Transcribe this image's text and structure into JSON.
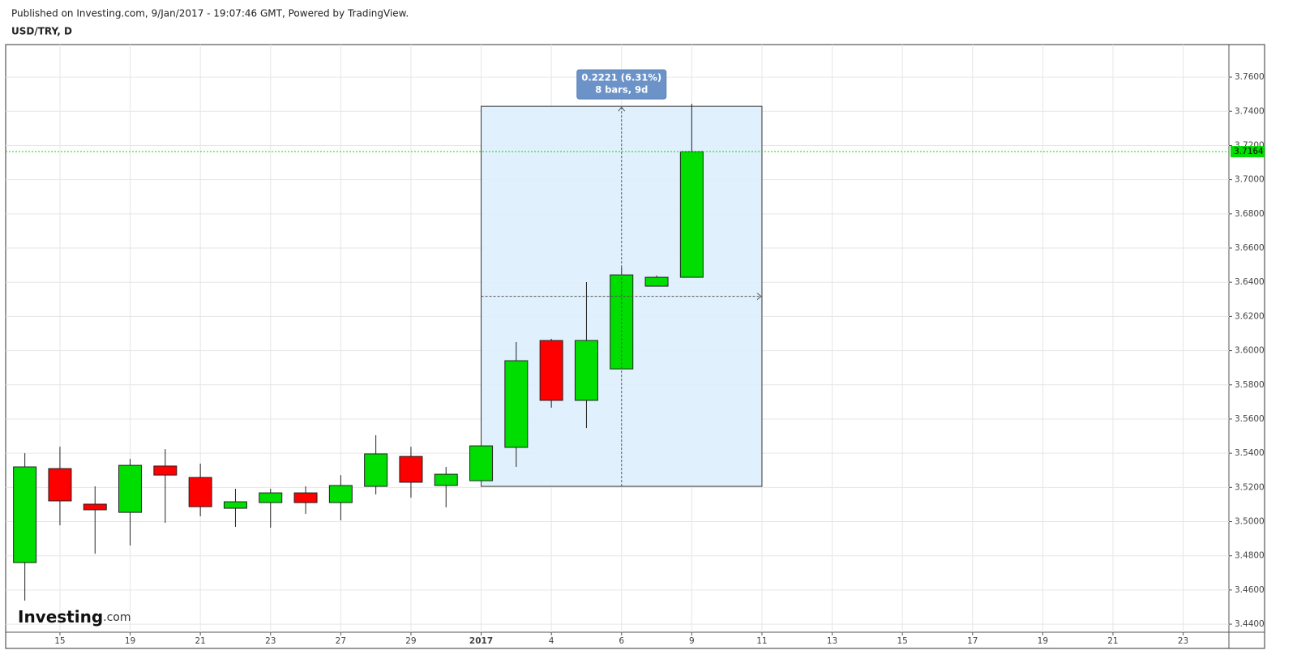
{
  "chart_data": {
    "type": "candlestick",
    "published": "Published on Investing.com, 9/Jan/2017 - 19:07:46 GMT, Powered by TradingView.",
    "title": "USD/TRY, D",
    "logo": {
      "brand": "Investing",
      "suffix": ".com"
    },
    "categories": [
      null,
      "15",
      null,
      "19",
      null,
      "21",
      null,
      "23",
      null,
      "27",
      null,
      "29",
      null,
      "2017",
      null,
      "4",
      null,
      "6",
      null,
      "9",
      null,
      "11",
      null,
      "13",
      null,
      "15",
      null,
      "17",
      null,
      "19",
      null,
      "21",
      null,
      "23",
      null
    ],
    "open": [
      3.476,
      3.531,
      3.5102,
      3.5054,
      3.5325,
      3.5258,
      3.5078,
      3.5111,
      3.5168,
      3.5111,
      3.5206,
      3.5381,
      3.5211,
      3.5239,
      3.5434,
      3.6059,
      3.5709,
      3.5893,
      3.6377,
      3.6429,
      null,
      null,
      null,
      null,
      null,
      null,
      null,
      null,
      null,
      null,
      null,
      null,
      null,
      null,
      null
    ],
    "high": [
      3.54,
      3.5438,
      3.5206,
      3.5367,
      3.5424,
      3.5339,
      3.5192,
      3.5192,
      3.5206,
      3.5272,
      3.5505,
      3.5438,
      3.532,
      3.5443,
      3.605,
      3.6069,
      3.6401,
      3.6486,
      3.6439,
      3.7444,
      null,
      null,
      null,
      null,
      null,
      null,
      null,
      null,
      null,
      null,
      null,
      null,
      null,
      null,
      null
    ],
    "low": [
      3.4538,
      3.4978,
      3.4812,
      3.486,
      3.4993,
      3.5031,
      3.4969,
      3.4964,
      3.5045,
      3.5007,
      3.5159,
      3.514,
      3.5083,
      3.5239,
      3.532,
      3.5666,
      3.5547,
      3.5893,
      3.6377,
      3.6429,
      null,
      null,
      null,
      null,
      null,
      null,
      null,
      null,
      null,
      null,
      null,
      null,
      null,
      null,
      null
    ],
    "close": [
      3.532,
      3.5121,
      3.5069,
      3.5329,
      3.5272,
      3.5087,
      3.5116,
      3.5168,
      3.5111,
      3.5211,
      3.5396,
      3.523,
      3.5277,
      3.5443,
      3.5941,
      3.5709,
      3.6059,
      3.6443,
      3.6429,
      3.7164,
      null,
      null,
      null,
      null,
      null,
      null,
      null,
      null,
      null,
      null,
      null,
      null,
      null,
      null,
      null
    ],
    "up_color": "#00dd00",
    "down_color": "#ff0000",
    "last_price": 3.7164,
    "last_price_color": "#00dd00",
    "measure": {
      "x": [
        13,
        21
      ],
      "high": 3.7429,
      "low": 3.5206,
      "label": "0.2221 (6.31%)",
      "sublabel": "8 bars, 9d"
    },
    "ylim": [
      3.4353,
      3.779
    ],
    "yticks": [
      {
        "value": 3.44,
        "label": "3.4400"
      },
      {
        "value": 3.46,
        "label": "3.4600"
      },
      {
        "value": 3.48,
        "label": "3.4800"
      },
      {
        "value": 3.5,
        "label": "3.5000"
      },
      {
        "value": 3.52,
        "label": "3.5200"
      },
      {
        "value": 3.54,
        "label": "3.5400"
      },
      {
        "value": 3.56,
        "label": "3.5600"
      },
      {
        "value": 3.58,
        "label": "3.5800"
      },
      {
        "value": 3.6,
        "label": "3.6000"
      },
      {
        "value": 3.62,
        "label": "3.6200"
      },
      {
        "value": 3.64,
        "label": "3.6400"
      },
      {
        "value": 3.66,
        "label": "3.6600"
      },
      {
        "value": 3.68,
        "label": "3.6800"
      },
      {
        "value": 3.7,
        "label": "3.7000"
      },
      {
        "value": 3.72,
        "label": "3.7200"
      },
      {
        "value": 3.74,
        "label": "3.7400"
      },
      {
        "value": 3.76,
        "label": "3.7600"
      }
    ],
    "grid": true
  }
}
